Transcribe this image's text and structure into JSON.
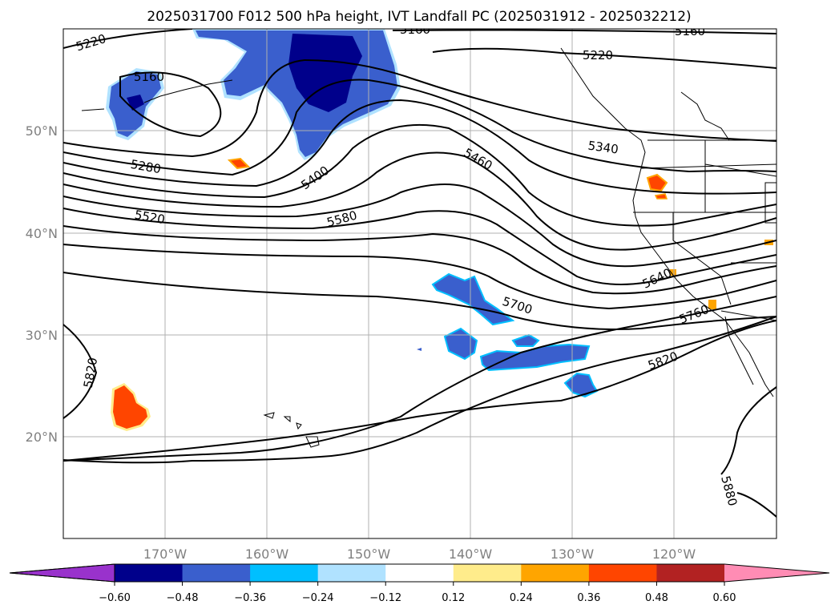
{
  "title": "2025031700 F012 500 hPa height, IVT Landfall PC (2025031912 - 2025032212)",
  "map": {
    "lat_labels": [
      "50°N",
      "40°N",
      "30°N",
      "20°N"
    ],
    "lon_labels": [
      "170°W",
      "160°W",
      "150°W",
      "140°W",
      "130°W",
      "120°W"
    ],
    "contour_labels": [
      "5220",
      "5160",
      "5160",
      "5160",
      "5220",
      "5280",
      "5400",
      "5460",
      "5340",
      "5520",
      "5580",
      "5640",
      "5700",
      "5760",
      "5820",
      "5820",
      "5880"
    ]
  },
  "colorbar": {
    "ticks": [
      "−0.60",
      "−0.48",
      "−0.36",
      "−0.24",
      "−0.12",
      "0.12",
      "0.24",
      "0.36",
      "0.48",
      "0.60"
    ],
    "colors": [
      "#9932cc",
      "#00008b",
      "#3a5fcd",
      "#00bfff",
      "#b0e2ff",
      "#ffffff",
      "#ffec8b",
      "#ffa500",
      "#ff4500",
      "#b22222",
      "#ff8cb4"
    ]
  }
}
